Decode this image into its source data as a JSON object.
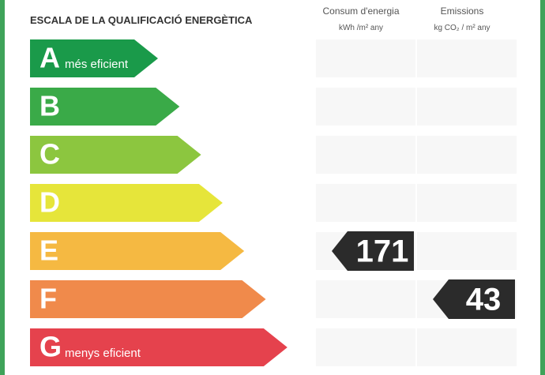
{
  "header": {
    "title": "ESCALA DE LA QUALIFICACIÓ ENERGÈTICA"
  },
  "columns": [
    {
      "label": "Consum d'energia",
      "unit": "kWh /m² any",
      "value": 171,
      "rating": "E"
    },
    {
      "label": "Emissions",
      "unit": "kg CO₂ / m² any",
      "value": 43,
      "rating": "F"
    }
  ],
  "ratings": [
    {
      "letter": "A",
      "note": "més eficient",
      "color": "#1a9a4a"
    },
    {
      "letter": "B",
      "color": "#3aaa48"
    },
    {
      "letter": "C",
      "color": "#8cc63f"
    },
    {
      "letter": "D",
      "color": "#e6e53a"
    },
    {
      "letter": "E",
      "color": "#f5b942"
    },
    {
      "letter": "F",
      "color": "#f08a4b"
    },
    {
      "letter": "G",
      "note": "menys eficient",
      "color": "#e5424d"
    }
  ]
}
